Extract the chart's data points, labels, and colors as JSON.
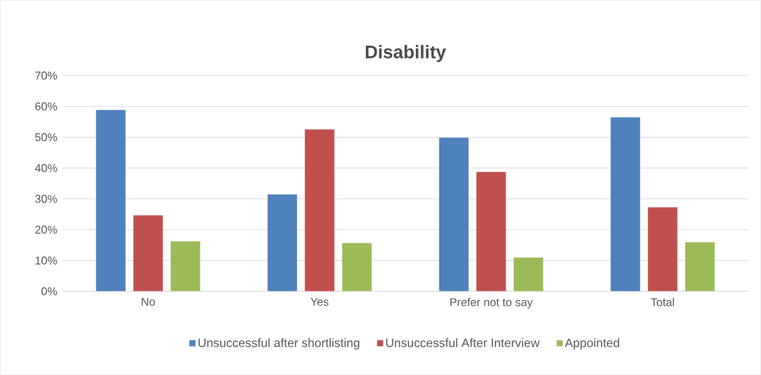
{
  "chart_data": {
    "type": "bar",
    "title": "Disability",
    "categories": [
      "No",
      "Yes",
      "Prefer not to say",
      "Total"
    ],
    "series": [
      {
        "name": "Unsuccessful after shortlisting",
        "color": "#4f81bd",
        "values": [
          58.9,
          31.5,
          49.9,
          56.5
        ]
      },
      {
        "name": "Unsuccessful After Interview",
        "color": "#c0504d",
        "values": [
          24.7,
          52.6,
          38.8,
          27.3
        ]
      },
      {
        "name": "Appointed",
        "color": "#9bbb59",
        "values": [
          16.3,
          15.7,
          11.0,
          16.0
        ]
      }
    ],
    "ylim": [
      0,
      70
    ],
    "yticks": [
      {
        "value": 0,
        "label": "0%"
      },
      {
        "value": 10,
        "label": "10%"
      },
      {
        "value": 20,
        "label": "20%"
      },
      {
        "value": 30,
        "label": "30%"
      },
      {
        "value": 40,
        "label": "40%"
      },
      {
        "value": 50,
        "label": "50%"
      },
      {
        "value": 60,
        "label": "60%"
      },
      {
        "value": 70,
        "label": "70%"
      }
    ],
    "grid": "y",
    "legend": "bottom"
  }
}
